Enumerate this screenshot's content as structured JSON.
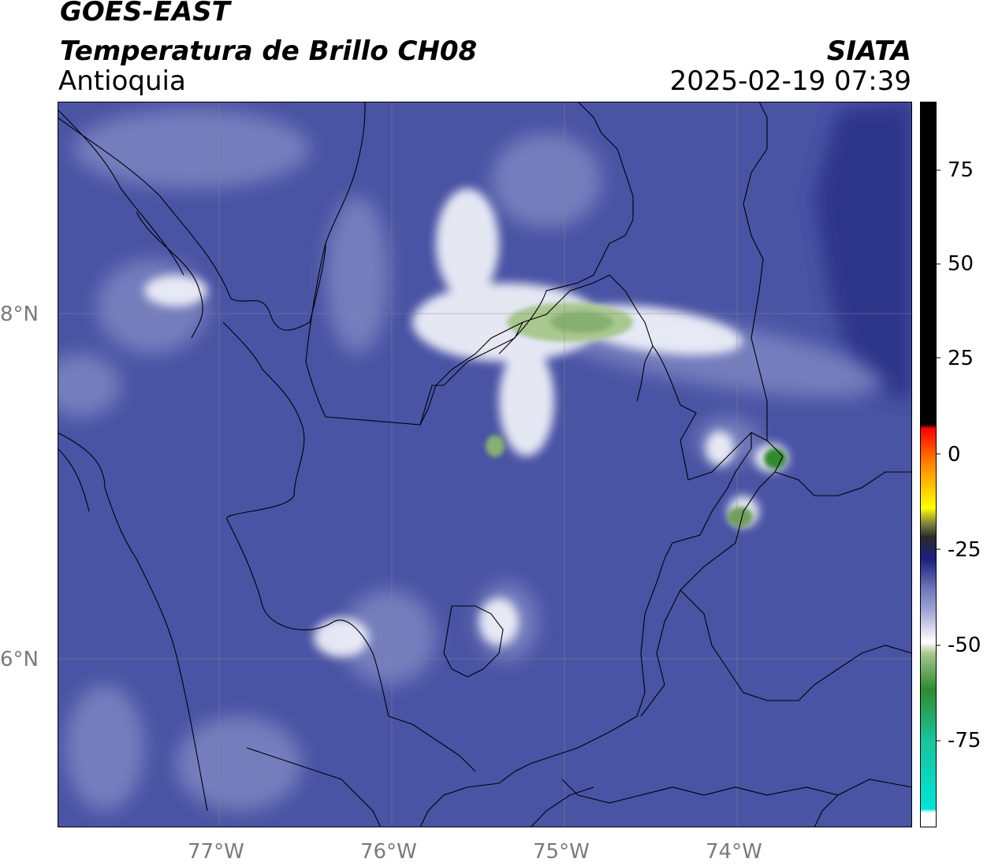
{
  "header": {
    "title_line1": "GOES-EAST",
    "title_line2": "Temperatura de Brillo CH08",
    "region": "Antioquia",
    "brand": "SIATA",
    "timestamp": "2025-02-19 07:39"
  },
  "map": {
    "longitude_labels": [
      "77°W",
      "76°W",
      "75°W",
      "74°W"
    ],
    "latitude_labels": [
      "8°N",
      "6°N"
    ],
    "background_color": "#4a54a4"
  },
  "colorbar": {
    "tick_labels": [
      "75",
      "50",
      "25",
      "0",
      "-25",
      "-50",
      "-75"
    ],
    "stops": [
      "#ffffff",
      "#00e5d8",
      "#2e8b2e",
      "#a8c890",
      "#ffffff",
      "#6b74b8",
      "#1a1f80",
      "#2a2a2a",
      "#ffff00",
      "#ff8800",
      "#ff0000",
      "#000000"
    ]
  }
}
